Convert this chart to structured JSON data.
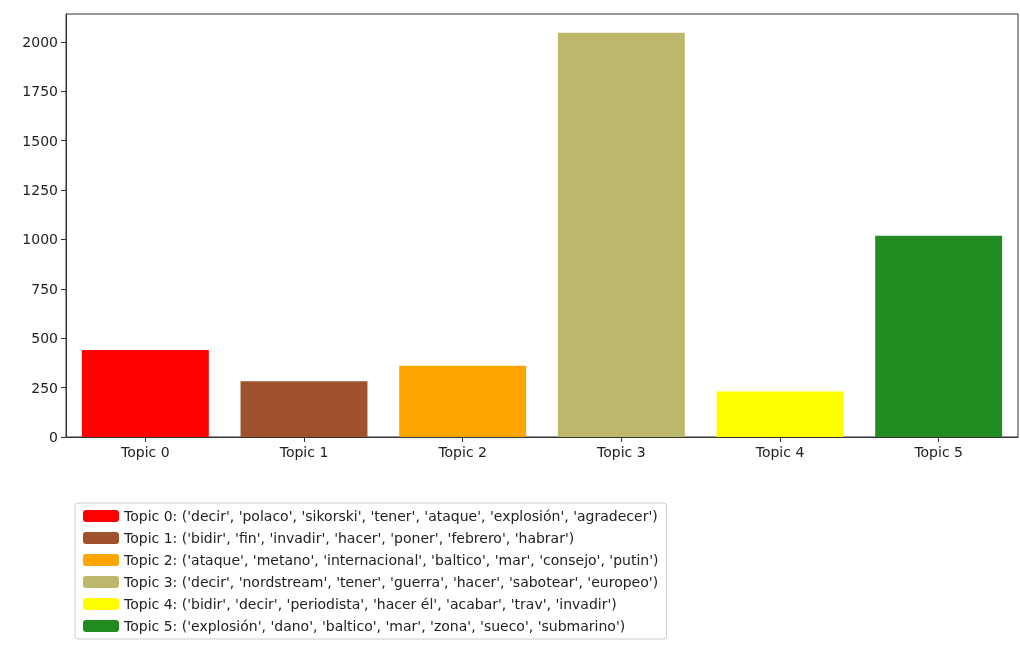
{
  "chart_data": {
    "type": "bar",
    "categories": [
      "Topic 0",
      "Topic 1",
      "Topic 2",
      "Topic 3",
      "Topic 4",
      "Topic 5"
    ],
    "stacked": true,
    "series": [
      {
        "name": "Topic 0: ('decir', 'polaco', 'sikorski', 'tener', 'ataque', 'explosión', 'agradecer')",
        "color": "#ff0000",
        "values": [
          440,
          null,
          null,
          null,
          null,
          null
        ]
      },
      {
        "name": "Topic 1: ('bidir', 'fin', 'invadir', 'hacer', 'poner', 'febrero', 'habrar')",
        "color": "#a0522d",
        "values": [
          null,
          282,
          null,
          null,
          null,
          null
        ]
      },
      {
        "name": "Topic 2: ('ataque', 'metano', 'internacional', 'baltico', 'mar', 'consejo', 'putin')",
        "color": "#ffa500",
        "values": [
          null,
          null,
          361,
          null,
          null,
          null
        ]
      },
      {
        "name": "Topic 3: ('decir', 'nordstream', 'tener', 'guerra', 'hacer', 'sabotear', 'europeo')",
        "color": "#bdb76b",
        "values": [
          null,
          null,
          null,
          2046,
          null,
          null
        ]
      },
      {
        "name": "Topic 4: ('bidir', 'decir', 'periodista', 'hacer él', 'acabar', 'trav', 'invadir')",
        "color": "#ffff00",
        "values": [
          null,
          null,
          null,
          null,
          230,
          null
        ]
      },
      {
        "name": "Topic 5: ('explosión', 'dano', 'baltico', 'mar', 'zona', 'sueco', 'submarino')",
        "color": "#228b22",
        "values": [
          null,
          null,
          null,
          null,
          null,
          1018
        ]
      }
    ],
    "ylim": [
      0,
      2141
    ],
    "yticks": [
      0,
      250,
      500,
      750,
      1000,
      1250,
      1500,
      1750,
      2000
    ],
    "grid": false,
    "legend": "bottom"
  }
}
